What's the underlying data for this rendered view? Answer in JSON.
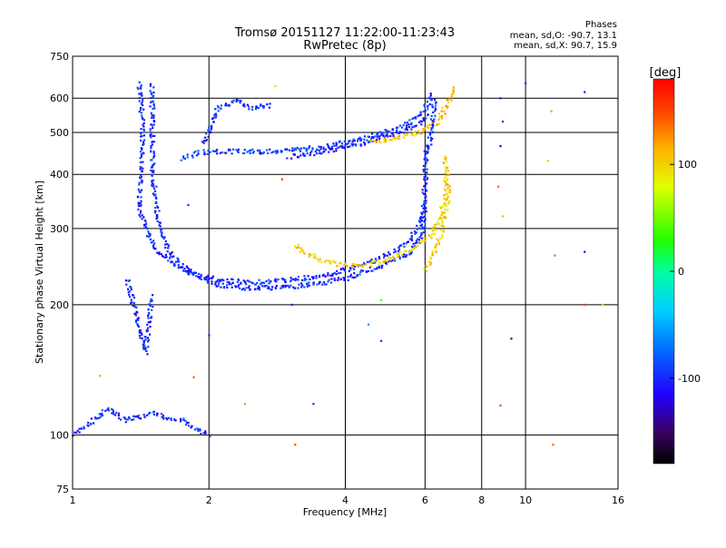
{
  "chart_data": {
    "type": "scatter",
    "title": "Tromsø 20151127 11:22:00-11:23:43",
    "subtitle": "RwPretec (8p)",
    "xlabel": "Frequency [MHz]",
    "ylabel": "Stationary phase Virtual Height [km]",
    "x_scale": "log",
    "y_scale": "log",
    "xlim": [
      1,
      16
    ],
    "ylim": [
      75,
      750
    ],
    "x_ticks": [
      1,
      2,
      4,
      6,
      8,
      10,
      16
    ],
    "x_tick_labels": [
      "1",
      "2",
      "4",
      "6",
      "8",
      "10",
      "16"
    ],
    "y_ticks": [
      75,
      100,
      200,
      300,
      400,
      500,
      600,
      750
    ],
    "y_tick_labels": [
      "75",
      "100",
      "200",
      "300",
      "400",
      "500",
      "600",
      "750"
    ],
    "grid": true,
    "phases_box": {
      "title": "Phases",
      "line_o": "mean, sd,O: -90.7, 13.1",
      "line_x": "mean, sd,X:  90.7, 15.9"
    },
    "colorbar": {
      "label": "[deg]",
      "range": [
        -180,
        180
      ],
      "ticks": [
        100,
        0,
        -100
      ],
      "tick_labels": [
        "100",
        "0",
        "-100"
      ]
    },
    "traces": [
      {
        "phase": -100,
        "points": [
          [
            1.4,
            650
          ],
          [
            1.42,
            560
          ],
          [
            1.43,
            480
          ],
          [
            1.42,
            420
          ],
          [
            1.4,
            360
          ],
          [
            1.41,
            330
          ],
          [
            1.45,
            300
          ],
          [
            1.52,
            270
          ],
          [
            1.65,
            250
          ],
          [
            1.85,
            235
          ],
          [
            2.1,
            228
          ],
          [
            2.5,
            225
          ],
          [
            3.0,
            228
          ],
          [
            3.5,
            232
          ],
          [
            4.0,
            240
          ],
          [
            4.5,
            250
          ],
          [
            5.0,
            262
          ],
          [
            5.5,
            280
          ],
          [
            5.8,
            300
          ],
          [
            5.95,
            330
          ],
          [
            6.0,
            380
          ],
          [
            6.02,
            430
          ],
          [
            6.05,
            470
          ]
        ]
      },
      {
        "phase": -100,
        "points": [
          [
            1.5,
            640
          ],
          [
            1.5,
            520
          ],
          [
            1.5,
            420
          ],
          [
            1.52,
            350
          ],
          [
            1.56,
            300
          ],
          [
            1.65,
            260
          ],
          [
            1.85,
            235
          ],
          [
            2.1,
            222
          ],
          [
            2.5,
            218
          ],
          [
            3.0,
            220
          ],
          [
            3.5,
            224
          ],
          [
            4.0,
            230
          ],
          [
            4.5,
            240
          ],
          [
            5.0,
            250
          ],
          [
            5.5,
            262
          ],
          [
            5.8,
            280
          ],
          [
            5.95,
            300
          ],
          [
            6.0,
            340
          ]
        ]
      },
      {
        "phase": -95,
        "points": [
          [
            1.75,
            435
          ],
          [
            1.9,
            450
          ],
          [
            2.2,
            452
          ],
          [
            2.6,
            452
          ],
          [
            3.0,
            455
          ],
          [
            3.5,
            462
          ],
          [
            4.0,
            475
          ],
          [
            4.5,
            490
          ],
          [
            5.0,
            505
          ],
          [
            5.5,
            525
          ],
          [
            5.8,
            545
          ],
          [
            6.0,
            565
          ],
          [
            6.1,
            590
          ],
          [
            6.2,
            620
          ]
        ]
      },
      {
        "phase": -105,
        "points": [
          [
            3.0,
            440
          ],
          [
            3.5,
            450
          ],
          [
            4.0,
            462
          ],
          [
            4.5,
            477
          ],
          [
            5.0,
            492
          ],
          [
            5.5,
            510
          ],
          [
            5.9,
            530
          ],
          [
            6.1,
            550
          ]
        ]
      },
      {
        "phase": -100,
        "points": [
          [
            1.95,
            470
          ],
          [
            2.0,
            500
          ],
          [
            2.05,
            540
          ],
          [
            2.1,
            570
          ],
          [
            2.3,
            590
          ],
          [
            2.5,
            570
          ],
          [
            2.75,
            580
          ]
        ]
      },
      {
        "phase": 100,
        "points": [
          [
            3.1,
            275
          ],
          [
            3.3,
            262
          ],
          [
            3.6,
            252
          ],
          [
            4.0,
            246
          ],
          [
            4.5,
            248
          ],
          [
            5.0,
            255
          ],
          [
            5.6,
            268
          ],
          [
            6.2,
            290
          ],
          [
            6.5,
            320
          ],
          [
            6.65,
            360
          ],
          [
            6.7,
            410
          ],
          [
            6.6,
            440
          ]
        ]
      },
      {
        "phase": 110,
        "points": [
          [
            4.6,
            475
          ],
          [
            5.0,
            482
          ],
          [
            5.5,
            492
          ],
          [
            6.0,
            505
          ],
          [
            6.4,
            530
          ],
          [
            6.6,
            560
          ],
          [
            6.8,
            600
          ],
          [
            7.0,
            640
          ]
        ]
      },
      {
        "phase": 100,
        "points": [
          [
            6.0,
            240
          ],
          [
            6.3,
            265
          ],
          [
            6.55,
            300
          ],
          [
            6.7,
            340
          ],
          [
            6.8,
            380
          ]
        ]
      },
      {
        "phase": -100,
        "points": [
          [
            1.32,
            230
          ],
          [
            1.35,
            210
          ],
          [
            1.38,
            190
          ],
          [
            1.42,
            170
          ],
          [
            1.45,
            155
          ],
          [
            1.48,
            190
          ],
          [
            1.5,
            210
          ]
        ]
      },
      {
        "phase": -100,
        "points": [
          [
            1.0,
            100
          ],
          [
            1.1,
            107
          ],
          [
            1.2,
            115
          ],
          [
            1.3,
            108
          ],
          [
            1.4,
            110
          ],
          [
            1.5,
            112
          ],
          [
            1.6,
            110
          ],
          [
            1.75,
            108
          ],
          [
            2.0,
            100
          ]
        ]
      },
      {
        "phase": -100,
        "points": [
          [
            6.1,
            450
          ],
          [
            6.2,
            500
          ],
          [
            6.25,
            550
          ],
          [
            6.3,
            600
          ]
        ]
      }
    ],
    "scatter_points": [
      {
        "x": 8.8,
        "y": 600,
        "phase": -110
      },
      {
        "x": 8.9,
        "y": 530,
        "phase": -100
      },
      {
        "x": 8.8,
        "y": 465,
        "phase": -120
      },
      {
        "x": 8.7,
        "y": 375,
        "phase": 140
      },
      {
        "x": 8.9,
        "y": 320,
        "phase": 110
      },
      {
        "x": 10.0,
        "y": 650,
        "phase": -100
      },
      {
        "x": 13.5,
        "y": 620,
        "phase": -110
      },
      {
        "x": 11.4,
        "y": 560,
        "phase": 120
      },
      {
        "x": 11.2,
        "y": 430,
        "phase": 60
      },
      {
        "x": 11.6,
        "y": 260,
        "phase": 140
      },
      {
        "x": 13.5,
        "y": 265,
        "phase": -120
      },
      {
        "x": 13.5,
        "y": 200,
        "phase": 150
      },
      {
        "x": 14.8,
        "y": 200,
        "phase": 100
      },
      {
        "x": 8.8,
        "y": 117,
        "phase": 150
      },
      {
        "x": 9.3,
        "y": 167,
        "phase": -140
      },
      {
        "x": 11.5,
        "y": 95,
        "phase": 140
      },
      {
        "x": 3.4,
        "y": 118,
        "phase": -100
      },
      {
        "x": 3.1,
        "y": 95,
        "phase": 150
      },
      {
        "x": 2.4,
        "y": 118,
        "phase": 40
      },
      {
        "x": 4.8,
        "y": 165,
        "phase": -100
      },
      {
        "x": 4.5,
        "y": 180,
        "phase": -60
      },
      {
        "x": 4.8,
        "y": 205,
        "phase": 40
      },
      {
        "x": 3.05,
        "y": 200,
        "phase": -100
      },
      {
        "x": 2.9,
        "y": 390,
        "phase": 150
      },
      {
        "x": 2.6,
        "y": 580,
        "phase": -100
      },
      {
        "x": 2.8,
        "y": 640,
        "phase": 100
      },
      {
        "x": 1.15,
        "y": 137,
        "phase": 40
      },
      {
        "x": 1.85,
        "y": 136,
        "phase": 140
      },
      {
        "x": 2.0,
        "y": 170,
        "phase": -100
      },
      {
        "x": 1.8,
        "y": 340,
        "phase": -100
      }
    ]
  }
}
